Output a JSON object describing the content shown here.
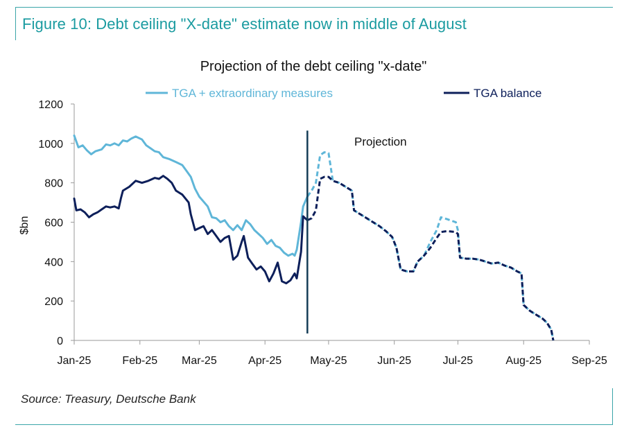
{
  "figure_title": "Figure 10: Debt ceiling \"X-date\" estimate now in middle of August",
  "source": "Source: Treasury, Deutsche Bank",
  "colors": {
    "frame": "#3aa5a8",
    "figure_title": "#1a9ba0",
    "tga_extraordinary": "#5fb6d8",
    "tga_balance": "#0d1f5a",
    "divider": "#133c55"
  },
  "chart_data": {
    "type": "line",
    "title": "Projection of the debt ceiling \"x-date\"",
    "ylabel": "$bn",
    "xlabel": "",
    "ylim": [
      0,
      1200
    ],
    "yticks": [
      0,
      200,
      400,
      600,
      800,
      1000,
      1200
    ],
    "xlim": [
      "2025-01-01",
      "2025-09-01"
    ],
    "xticks": [
      {
        "date": "2025-01-01",
        "label": "Jan-25"
      },
      {
        "date": "2025-02-01",
        "label": "Feb-25"
      },
      {
        "date": "2025-03-01",
        "label": "Mar-25"
      },
      {
        "date": "2025-04-01",
        "label": "Apr-25"
      },
      {
        "date": "2025-05-01",
        "label": "May-25"
      },
      {
        "date": "2025-06-01",
        "label": "Jun-25"
      },
      {
        "date": "2025-07-01",
        "label": "Jul-25"
      },
      {
        "date": "2025-08-01",
        "label": "Aug-25"
      },
      {
        "date": "2025-09-01",
        "label": "Sep-25"
      }
    ],
    "grid": false,
    "legend": "top",
    "projection_start": "2025-04-21",
    "annotation": "Projection",
    "series": [
      {
        "name": "TGA + extraordinary measures",
        "color": "#5fb6d8",
        "actual": [
          [
            "2025-01-01",
            1040
          ],
          [
            "2025-01-03",
            980
          ],
          [
            "2025-01-05",
            990
          ],
          [
            "2025-01-07",
            965
          ],
          [
            "2025-01-09",
            945
          ],
          [
            "2025-01-11",
            960
          ],
          [
            "2025-01-14",
            970
          ],
          [
            "2025-01-16",
            995
          ],
          [
            "2025-01-18",
            990
          ],
          [
            "2025-01-20",
            1000
          ],
          [
            "2025-01-22",
            990
          ],
          [
            "2025-01-24",
            1015
          ],
          [
            "2025-01-26",
            1010
          ],
          [
            "2025-01-28",
            1025
          ],
          [
            "2025-01-30",
            1035
          ],
          [
            "2025-02-02",
            1020
          ],
          [
            "2025-02-04",
            990
          ],
          [
            "2025-02-06",
            975
          ],
          [
            "2025-02-08",
            960
          ],
          [
            "2025-02-10",
            955
          ],
          [
            "2025-02-12",
            930
          ],
          [
            "2025-02-15",
            920
          ],
          [
            "2025-02-18",
            905
          ],
          [
            "2025-02-21",
            890
          ],
          [
            "2025-02-23",
            860
          ],
          [
            "2025-02-25",
            830
          ],
          [
            "2025-02-27",
            770
          ],
          [
            "2025-03-01",
            730
          ],
          [
            "2025-03-03",
            705
          ],
          [
            "2025-03-05",
            680
          ],
          [
            "2025-03-07",
            625
          ],
          [
            "2025-03-09",
            620
          ],
          [
            "2025-03-11",
            600
          ],
          [
            "2025-03-13",
            610
          ],
          [
            "2025-03-15",
            580
          ],
          [
            "2025-03-17",
            560
          ],
          [
            "2025-03-19",
            585
          ],
          [
            "2025-03-21",
            560
          ],
          [
            "2025-03-23",
            610
          ],
          [
            "2025-03-25",
            590
          ],
          [
            "2025-03-27",
            560
          ],
          [
            "2025-03-29",
            540
          ],
          [
            "2025-03-31",
            520
          ],
          [
            "2025-04-02",
            490
          ],
          [
            "2025-04-04",
            510
          ],
          [
            "2025-04-06",
            480
          ],
          [
            "2025-04-08",
            470
          ],
          [
            "2025-04-10",
            445
          ],
          [
            "2025-04-12",
            430
          ],
          [
            "2025-04-14",
            440
          ],
          [
            "2025-04-15",
            430
          ],
          [
            "2025-04-16",
            460
          ],
          [
            "2025-04-18",
            600
          ],
          [
            "2025-04-19",
            680
          ],
          [
            "2025-04-21",
            730
          ]
        ],
        "projection": [
          [
            "2025-04-21",
            730
          ],
          [
            "2025-04-23",
            760
          ],
          [
            "2025-04-25",
            800
          ],
          [
            "2025-04-27",
            940
          ],
          [
            "2025-04-29",
            955
          ],
          [
            "2025-05-01",
            950
          ],
          [
            "2025-05-02",
            880
          ],
          [
            "2025-05-03",
            810
          ],
          [
            "2025-05-06",
            800
          ],
          [
            "2025-05-09",
            780
          ],
          [
            "2025-05-12",
            760
          ],
          [
            "2025-05-13",
            660
          ],
          [
            "2025-05-16",
            640
          ],
          [
            "2025-05-19",
            620
          ],
          [
            "2025-05-22",
            600
          ],
          [
            "2025-05-25",
            580
          ],
          [
            "2025-05-28",
            555
          ],
          [
            "2025-05-31",
            525
          ],
          [
            "2025-06-02",
            470
          ],
          [
            "2025-06-04",
            360
          ],
          [
            "2025-06-07",
            350
          ],
          [
            "2025-06-10",
            350
          ],
          [
            "2025-06-12",
            400
          ],
          [
            "2025-06-15",
            430
          ],
          [
            "2025-06-18",
            500
          ],
          [
            "2025-06-21",
            560
          ],
          [
            "2025-06-23",
            625
          ],
          [
            "2025-06-26",
            615
          ],
          [
            "2025-06-30",
            600
          ],
          [
            "2025-07-01",
            560
          ],
          [
            "2025-07-02",
            420
          ],
          [
            "2025-07-05",
            415
          ],
          [
            "2025-07-08",
            415
          ],
          [
            "2025-07-11",
            410
          ],
          [
            "2025-07-14",
            400
          ],
          [
            "2025-07-17",
            390
          ],
          [
            "2025-07-20",
            395
          ],
          [
            "2025-07-23",
            380
          ],
          [
            "2025-07-26",
            370
          ],
          [
            "2025-07-29",
            350
          ],
          [
            "2025-07-31",
            340
          ],
          [
            "2025-08-01",
            180
          ],
          [
            "2025-08-04",
            150
          ],
          [
            "2025-08-07",
            130
          ],
          [
            "2025-08-10",
            110
          ],
          [
            "2025-08-12",
            90
          ],
          [
            "2025-08-14",
            55
          ],
          [
            "2025-08-15",
            0
          ]
        ]
      },
      {
        "name": "TGA balance",
        "color": "#0d1f5a",
        "actual": [
          [
            "2025-01-01",
            720
          ],
          [
            "2025-01-02",
            660
          ],
          [
            "2025-01-04",
            665
          ],
          [
            "2025-01-06",
            650
          ],
          [
            "2025-01-08",
            625
          ],
          [
            "2025-01-10",
            640
          ],
          [
            "2025-01-12",
            650
          ],
          [
            "2025-01-14",
            665
          ],
          [
            "2025-01-16",
            680
          ],
          [
            "2025-01-18",
            675
          ],
          [
            "2025-01-20",
            680
          ],
          [
            "2025-01-22",
            670
          ],
          [
            "2025-01-23",
            720
          ],
          [
            "2025-01-24",
            760
          ],
          [
            "2025-01-27",
            780
          ],
          [
            "2025-01-30",
            810
          ],
          [
            "2025-02-02",
            800
          ],
          [
            "2025-02-05",
            810
          ],
          [
            "2025-02-08",
            825
          ],
          [
            "2025-02-10",
            820
          ],
          [
            "2025-02-12",
            835
          ],
          [
            "2025-02-14",
            820
          ],
          [
            "2025-02-16",
            800
          ],
          [
            "2025-02-18",
            760
          ],
          [
            "2025-02-21",
            740
          ],
          [
            "2025-02-24",
            700
          ],
          [
            "2025-02-25",
            640
          ],
          [
            "2025-02-27",
            560
          ],
          [
            "2025-03-01",
            570
          ],
          [
            "2025-03-03",
            580
          ],
          [
            "2025-03-05",
            540
          ],
          [
            "2025-03-07",
            560
          ],
          [
            "2025-03-09",
            530
          ],
          [
            "2025-03-11",
            500
          ],
          [
            "2025-03-13",
            520
          ],
          [
            "2025-03-15",
            530
          ],
          [
            "2025-03-17",
            410
          ],
          [
            "2025-03-19",
            430
          ],
          [
            "2025-03-21",
            500
          ],
          [
            "2025-03-22",
            530
          ],
          [
            "2025-03-24",
            420
          ],
          [
            "2025-03-26",
            390
          ],
          [
            "2025-03-28",
            360
          ],
          [
            "2025-03-30",
            375
          ],
          [
            "2025-04-01",
            350
          ],
          [
            "2025-04-03",
            300
          ],
          [
            "2025-04-05",
            340
          ],
          [
            "2025-04-07",
            395
          ],
          [
            "2025-04-09",
            300
          ],
          [
            "2025-04-11",
            290
          ],
          [
            "2025-04-13",
            305
          ],
          [
            "2025-04-15",
            340
          ],
          [
            "2025-04-16",
            315
          ],
          [
            "2025-04-18",
            450
          ],
          [
            "2025-04-19",
            630
          ],
          [
            "2025-04-21",
            610
          ]
        ],
        "projection": [
          [
            "2025-04-21",
            610
          ],
          [
            "2025-04-23",
            620
          ],
          [
            "2025-04-25",
            660
          ],
          [
            "2025-04-27",
            820
          ],
          [
            "2025-04-29",
            830
          ],
          [
            "2025-05-01",
            830
          ],
          [
            "2025-05-03",
            810
          ],
          [
            "2025-05-06",
            800
          ],
          [
            "2025-05-09",
            780
          ],
          [
            "2025-05-12",
            760
          ],
          [
            "2025-05-13",
            660
          ],
          [
            "2025-05-16",
            640
          ],
          [
            "2025-05-19",
            620
          ],
          [
            "2025-05-22",
            600
          ],
          [
            "2025-05-25",
            580
          ],
          [
            "2025-05-28",
            555
          ],
          [
            "2025-05-31",
            525
          ],
          [
            "2025-06-02",
            470
          ],
          [
            "2025-06-04",
            360
          ],
          [
            "2025-06-07",
            350
          ],
          [
            "2025-06-10",
            350
          ],
          [
            "2025-06-12",
            400
          ],
          [
            "2025-06-15",
            430
          ],
          [
            "2025-06-18",
            470
          ],
          [
            "2025-06-21",
            520
          ],
          [
            "2025-06-23",
            550
          ],
          [
            "2025-06-26",
            555
          ],
          [
            "2025-06-30",
            550
          ],
          [
            "2025-07-01",
            540
          ],
          [
            "2025-07-02",
            420
          ],
          [
            "2025-07-05",
            415
          ],
          [
            "2025-07-08",
            415
          ],
          [
            "2025-07-11",
            410
          ],
          [
            "2025-07-14",
            400
          ],
          [
            "2025-07-17",
            390
          ],
          [
            "2025-07-20",
            395
          ],
          [
            "2025-07-23",
            380
          ],
          [
            "2025-07-26",
            370
          ],
          [
            "2025-07-29",
            350
          ],
          [
            "2025-07-31",
            340
          ],
          [
            "2025-08-01",
            180
          ],
          [
            "2025-08-04",
            150
          ],
          [
            "2025-08-07",
            130
          ],
          [
            "2025-08-10",
            110
          ],
          [
            "2025-08-12",
            90
          ],
          [
            "2025-08-14",
            55
          ],
          [
            "2025-08-15",
            0
          ]
        ]
      }
    ]
  }
}
